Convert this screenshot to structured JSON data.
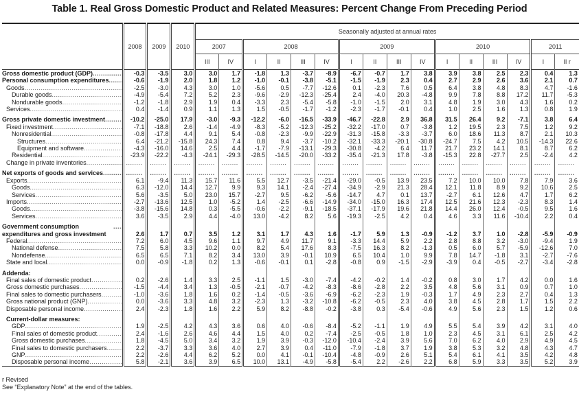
{
  "title": "Table 1. Real Gross Domestic Product and Related Measures: Percent Change From Preceding Period",
  "header": {
    "seasonal_label": "Seasonally adjusted at annual rates",
    "annual_years": [
      "2008",
      "2009",
      "2010"
    ],
    "quarter_years": [
      {
        "year": "2007",
        "quarters": [
          "III",
          "IV"
        ]
      },
      {
        "year": "2008",
        "quarters": [
          "I",
          "II",
          "III",
          "IV"
        ]
      },
      {
        "year": "2009",
        "quarters": [
          "I",
          "II",
          "III",
          "IV"
        ]
      },
      {
        "year": "2010",
        "quarters": [
          "I",
          "II",
          "III",
          "IV"
        ]
      },
      {
        "year": "2011",
        "quarters": [
          "I",
          "II r"
        ]
      }
    ]
  },
  "rows": [
    {
      "label": "Gross domestic product (GDP)",
      "values": [
        "-0.3",
        "-3.5",
        "3.0",
        "3.0",
        "1.7",
        "-1.8",
        "1.3",
        "-3.7",
        "-8.9",
        "-6.7",
        "-0.7",
        "1.7",
        "3.8",
        "3.9",
        "3.8",
        "2.5",
        "2.3",
        "0.4",
        "1.3"
      ]
    },
    {
      "label": "Personal consumption expenditures",
      "values": [
        "-0.6",
        "-1.9",
        "2.0",
        "1.8",
        "1.2",
        "-1.0",
        "-0.1",
        "-3.8",
        "-5.1",
        "-1.5",
        "-1.9",
        "2.3",
        "0.4",
        "2.7",
        "2.9",
        "2.6",
        "3.6",
        "2.1",
        "0.7"
      ]
    },
    {
      "label": "Goods",
      "values": [
        "-2.5",
        "-3.0",
        "4.3",
        "3.0",
        "1.0",
        "-5.6",
        "0.5",
        "-7.7",
        "-12.6",
        "0.1",
        "-2.3",
        "7.6",
        "0.5",
        "6.4",
        "3.8",
        "4.8",
        "8.3",
        "4.7",
        "-1.6"
      ]
    },
    {
      "label": "Durable goods",
      "values": [
        "-4.9",
        "-5.4",
        "7.2",
        "5.2",
        "2.3",
        "-9.6",
        "-2.9",
        "-12.3",
        "-25.4",
        "2.4",
        "-4.0",
        "20.3",
        "-4.8",
        "9.9",
        "7.8",
        "8.8",
        "17.2",
        "11.7",
        "-5.3"
      ]
    },
    {
      "label": "Nondurable goods",
      "values": [
        "-1.2",
        "-1.8",
        "2.9",
        "1.9",
        "0.4",
        "-3.3",
        "2.3",
        "-5.4",
        "-5.8",
        "-1.0",
        "-1.5",
        "2.0",
        "3.1",
        "4.8",
        "1.9",
        "3.0",
        "4.3",
        "1.6",
        "0.2"
      ]
    },
    {
      "label": "Services",
      "values": [
        "0.4",
        "-1.4",
        "0.9",
        "1.1",
        "1.3",
        "1.5",
        "-0.5",
        "-1.7",
        "-1.2",
        "-2.3",
        "-1.7",
        "-0.1",
        "0.4",
        "1.0",
        "2.5",
        "1.6",
        "1.3",
        "0.8",
        "1.9"
      ]
    },
    {
      "label": "Gross private domestic investment",
      "values": [
        "-10.2",
        "-25.0",
        "17.9",
        "-3.0",
        "-9.3",
        "-12.2",
        "-6.0",
        "-16.5",
        "-33.9",
        "-46.7",
        "-22.8",
        "2.9",
        "36.8",
        "31.5",
        "26.4",
        "9.2",
        "-7.1",
        "3.8",
        "6.4"
      ]
    },
    {
      "label": "Fixed investment",
      "values": [
        "-7.1",
        "-18.8",
        "2.6",
        "-1.4",
        "-4.9",
        "-8.3",
        "-5.2",
        "-12.3",
        "-25.2",
        "-32.2",
        "-17.0",
        "0.7",
        "-3.8",
        "1.2",
        "19.5",
        "2.3",
        "7.5",
        "1.2",
        "9.2"
      ]
    },
    {
      "label": "Nonresidential",
      "values": [
        "-0.8",
        "-17.8",
        "4.4",
        "9.1",
        "5.4",
        "-0.8",
        "-2.3",
        "-9.9",
        "-22.9",
        "-31.3",
        "-15.8",
        "-3.3",
        "-3.7",
        "6.0",
        "18.6",
        "11.3",
        "8.7",
        "2.1",
        "10.3"
      ]
    },
    {
      "label": "Structures",
      "values": [
        "6.4",
        "-21.2",
        "-15.8",
        "24.3",
        "7.4",
        "0.8",
        "9.4",
        "-3.7",
        "-10.2",
        "-32.1",
        "-33.3",
        "-20.1",
        "-30.8",
        "-24.7",
        "7.5",
        "4.2",
        "10.5",
        "-14.3",
        "22.6"
      ]
    },
    {
      "label": "Equipment and software",
      "values": [
        "-4.3",
        "-16.0",
        "14.6",
        "2.5",
        "4.4",
        "-1.7",
        "-7.9",
        "-13.1",
        "-29.3",
        "-30.8",
        "-4.2",
        "6.4",
        "11.7",
        "21.7",
        "23.2",
        "14.1",
        "8.1",
        "8.7",
        "6.2"
      ]
    },
    {
      "label": "Residential",
      "values": [
        "-23.9",
        "-22.2",
        "-4.3",
        "-24.1",
        "-29.3",
        "-28.5",
        "-14.5",
        "-20.0",
        "-33.2",
        "-35.4",
        "-21.3",
        "17.8",
        "-3.8",
        "-15.3",
        "22.8",
        "-27.7",
        "2.5",
        "-2.4",
        "4.2"
      ]
    },
    {
      "label": "Change in private inventories",
      "values": [
        "........",
        "........",
        "........",
        "........",
        "........",
        "........",
        "........",
        "........",
        "........",
        "........",
        "........",
        "........",
        "........",
        "........",
        "........",
        "........",
        "........",
        "........",
        "........"
      ]
    },
    {
      "label": "Net exports of goods and services",
      "values": [
        "........",
        "........",
        "........",
        "........",
        "........",
        "........",
        "........",
        "........",
        "........",
        "........",
        "........",
        "........",
        "........",
        "........",
        "........",
        "........",
        "........",
        "........",
        "........"
      ]
    },
    {
      "label": "Exports",
      "values": [
        "6.1",
        "-9.4",
        "11.3",
        "15.7",
        "11.6",
        "5.5",
        "12.7",
        "-3.5",
        "-21.4",
        "-29.0",
        "-0.5",
        "13.9",
        "23.5",
        "7.2",
        "10.0",
        "10.0",
        "7.8",
        "7.9",
        "3.6"
      ]
    },
    {
      "label": "Goods",
      "values": [
        "6.3",
        "-12.0",
        "14.4",
        "12.7",
        "9.9",
        "9.3",
        "14.1",
        "-2.4",
        "-27.4",
        "-34.9",
        "-2.9",
        "21.3",
        "28.4",
        "12.1",
        "11.8",
        "8.9",
        "9.2",
        "10.6",
        "2.5"
      ]
    },
    {
      "label": "Services",
      "values": [
        "5.6",
        "-3.5",
        "5.0",
        "23.0",
        "15.7",
        "-2.7",
        "9.5",
        "-6.2",
        "-5.6",
        "-14.7",
        "4.7",
        "0.1",
        "13.7",
        "-2.7",
        "6.1",
        "12.6",
        "4.7",
        "1.7",
        "6.2"
      ]
    },
    {
      "label": "Imports",
      "values": [
        "-2.7",
        "-13.6",
        "12.5",
        "1.0",
        "-5.2",
        "1.4",
        "-2.5",
        "-6.6",
        "-14.9",
        "-34.0",
        "-15.0",
        "16.3",
        "17.4",
        "12.5",
        "21.6",
        "12.3",
        "-2.3",
        "8.3",
        "1.4"
      ]
    },
    {
      "label": "Goods",
      "values": [
        "-3.8",
        "-15.6",
        "14.8",
        "0.3",
        "-5.5",
        "-0.6",
        "-2.2",
        "-9.1",
        "-18.5",
        "-37.1",
        "-17.9",
        "19.6",
        "21.8",
        "14.4",
        "26.0",
        "12.4",
        "-0.5",
        "9.5",
        "1.6"
      ]
    },
    {
      "label": "Services",
      "values": [
        "3.6",
        "-3.5",
        "2.9",
        "4.4",
        "-4.0",
        "13.0",
        "-4.2",
        "8.2",
        "5.6",
        "-19.3",
        "-2.5",
        "4.2",
        "0.4",
        "4.6",
        "3.3",
        "11.6",
        "-10.4",
        "2.2",
        "0.4"
      ]
    },
    {
      "label": "Government consumption expenditures and gross investment",
      "values": [
        "2.6",
        "1.7",
        "0.7",
        "3.5",
        "1.2",
        "3.1",
        "1.7",
        "4.3",
        "1.6",
        "-1.7",
        "5.9",
        "1.3",
        "-0.9",
        "-1.2",
        "3.7",
        "1.0",
        "-2.8",
        "-5.9",
        "-0.9"
      ]
    },
    {
      "label": "Federal",
      "values": [
        "7.2",
        "6.0",
        "4.5",
        "9.6",
        "1.1",
        "9.7",
        "4.9",
        "11.7",
        "9.1",
        "-3.3",
        "14.4",
        "5.9",
        "2.2",
        "2.8",
        "8.8",
        "3.2",
        "-3.0",
        "-9.4",
        "1.9"
      ]
    },
    {
      "label": "National defense",
      "values": [
        "7.5",
        "5.8",
        "3.3",
        "10.2",
        "0.0",
        "8.2",
        "5.4",
        "17.6",
        "8.3",
        "-7.5",
        "16.3",
        "8.2",
        "-1.3",
        "0.5",
        "6.0",
        "5.7",
        "-5.9",
        "-12.6",
        "7.0"
      ]
    },
    {
      "label": "Nondefense",
      "values": [
        "6.5",
        "6.5",
        "7.1",
        "8.2",
        "3.4",
        "13.0",
        "3.9",
        "-0.1",
        "10.9",
        "6.5",
        "10.4",
        "1.0",
        "9.9",
        "7.8",
        "14.7",
        "-1.8",
        "3.1",
        "-2.7",
        "-7.6"
      ]
    },
    {
      "label": "State and local",
      "values": [
        "0.0",
        "-0.9",
        "-1.8",
        "0.2",
        "1.3",
        "-0.6",
        "-0.1",
        "0.1",
        "-2.8",
        "-0.8",
        "0.9",
        "-1.5",
        "-2.9",
        "-3.9",
        "0.4",
        "-0.5",
        "-2.7",
        "-3.4",
        "-2.8"
      ]
    },
    {
      "label": "Addenda:",
      "values": []
    },
    {
      "label": "Final sales of domestic product",
      "values": [
        "0.2",
        "-2.6",
        "1.4",
        "3.3",
        "2.5",
        "-1.1",
        "1.5",
        "-3.0",
        "-7.4",
        "-4.2",
        "-0.2",
        "1.4",
        "-0.2",
        "0.8",
        "3.0",
        "1.7",
        "4.2",
        "0.0",
        "1.6"
      ]
    },
    {
      "label": "Gross domestic purchases",
      "values": [
        "-1.5",
        "-4.4",
        "3.4",
        "1.3",
        "-0.5",
        "-2.1",
        "-0.7",
        "-4.2",
        "-8.3",
        "-8.6",
        "-2.8",
        "2.2",
        "3.5",
        "4.8",
        "5.6",
        "3.1",
        "0.9",
        "0.7",
        "1.0"
      ]
    },
    {
      "label": "Final sales to domestic purchasers",
      "values": [
        "-1.0",
        "-3.6",
        "1.8",
        "1.6",
        "0.2",
        "-1.4",
        "-0.5",
        "-3.6",
        "-6.9",
        "-6.2",
        "-2.3",
        "1.9",
        "-0.3",
        "1.7",
        "4.9",
        "2.3",
        "2.7",
        "0.4",
        "1.3"
      ]
    },
    {
      "label": "Gross national product (GNP)",
      "values": [
        "0.0",
        "-3.6",
        "3.3",
        "4.8",
        "3.2",
        "-2.3",
        "1.3",
        "-3.2",
        "-10.8",
        "-6.2",
        "-0.5",
        "2.3",
        "4.0",
        "3.8",
        "4.5",
        "2.8",
        "1.7",
        "1.5",
        "2.2"
      ]
    },
    {
      "label": "Disposable personal income",
      "values": [
        "2.4",
        "-2.3",
        "1.8",
        "1.6",
        "2.2",
        "5.9",
        "8.2",
        "-8.8",
        "-0.2",
        "-3.8",
        "0.3",
        "-5.4",
        "-0.6",
        "4.9",
        "5.6",
        "2.3",
        "1.5",
        "1.2",
        "0.6"
      ]
    },
    {
      "label": "Current-dollar measures:",
      "values": []
    },
    {
      "label": "GDP",
      "values": [
        "1.9",
        "-2.5",
        "4.2",
        "4.3",
        "3.6",
        "0.6",
        "4.0",
        "-0.6",
        "-8.4",
        "-5.2",
        "-1.1",
        "1.9",
        "4.9",
        "5.5",
        "5.4",
        "3.9",
        "4.2",
        "3.1",
        "4.0"
      ]
    },
    {
      "label": "Final sales of domestic product",
      "values": [
        "2.4",
        "-1.6",
        "2.6",
        "4.6",
        "4.4",
        "1.5",
        "4.0",
        "0.2",
        "-7.4",
        "-2.5",
        "-0.5",
        "1.8",
        "1.0",
        "2.3",
        "4.5",
        "3.1",
        "6.1",
        "2.5",
        "4.2"
      ]
    },
    {
      "label": "Gross domestic purchases",
      "values": [
        "1.8",
        "-4.5",
        "5.0",
        "3.4",
        "3.2",
        "1.9",
        "3.9",
        "-0.3",
        "-12.0",
        "-10.4",
        "-2.4",
        "3.9",
        "5.6",
        "7.0",
        "6.2",
        "4.0",
        "2.9",
        "4.9",
        "4.5"
      ]
    },
    {
      "label": "Final sales to domestic purchasers",
      "values": [
        "2.2",
        "-3.7",
        "3.3",
        "3.6",
        "4.0",
        "2.7",
        "3.9",
        "0.4",
        "-11.0",
        "-7.9",
        "-1.8",
        "3.7",
        "1.9",
        "3.8",
        "5.3",
        "3.2",
        "4.8",
        "4.3",
        "4.7"
      ]
    },
    {
      "label": "GNP",
      "values": [
        "2.2",
        "-2.6",
        "4.4",
        "6.2",
        "5.2",
        "0.0",
        "4.1",
        "-0.1",
        "-10.4",
        "-4.8",
        "-0.9",
        "2.6",
        "5.1",
        "5.4",
        "6.1",
        "4.1",
        "3.5",
        "4.2",
        "4.8"
      ]
    },
    {
      "label": "Disposable personal income",
      "values": [
        "5.8",
        "-2.1",
        "3.6",
        "3.9",
        "6.5",
        "10.0",
        "13.1",
        "-4.9",
        "-5.8",
        "-5.4",
        "2.2",
        "-2.6",
        "2.2",
        "6.8",
        "5.9",
        "3.3",
        "3.5",
        "5.2",
        "3.9"
      ]
    }
  ],
  "footnotes": [
    "r Revised",
    "See “Explanatory Note” at the end of the tables."
  ]
}
